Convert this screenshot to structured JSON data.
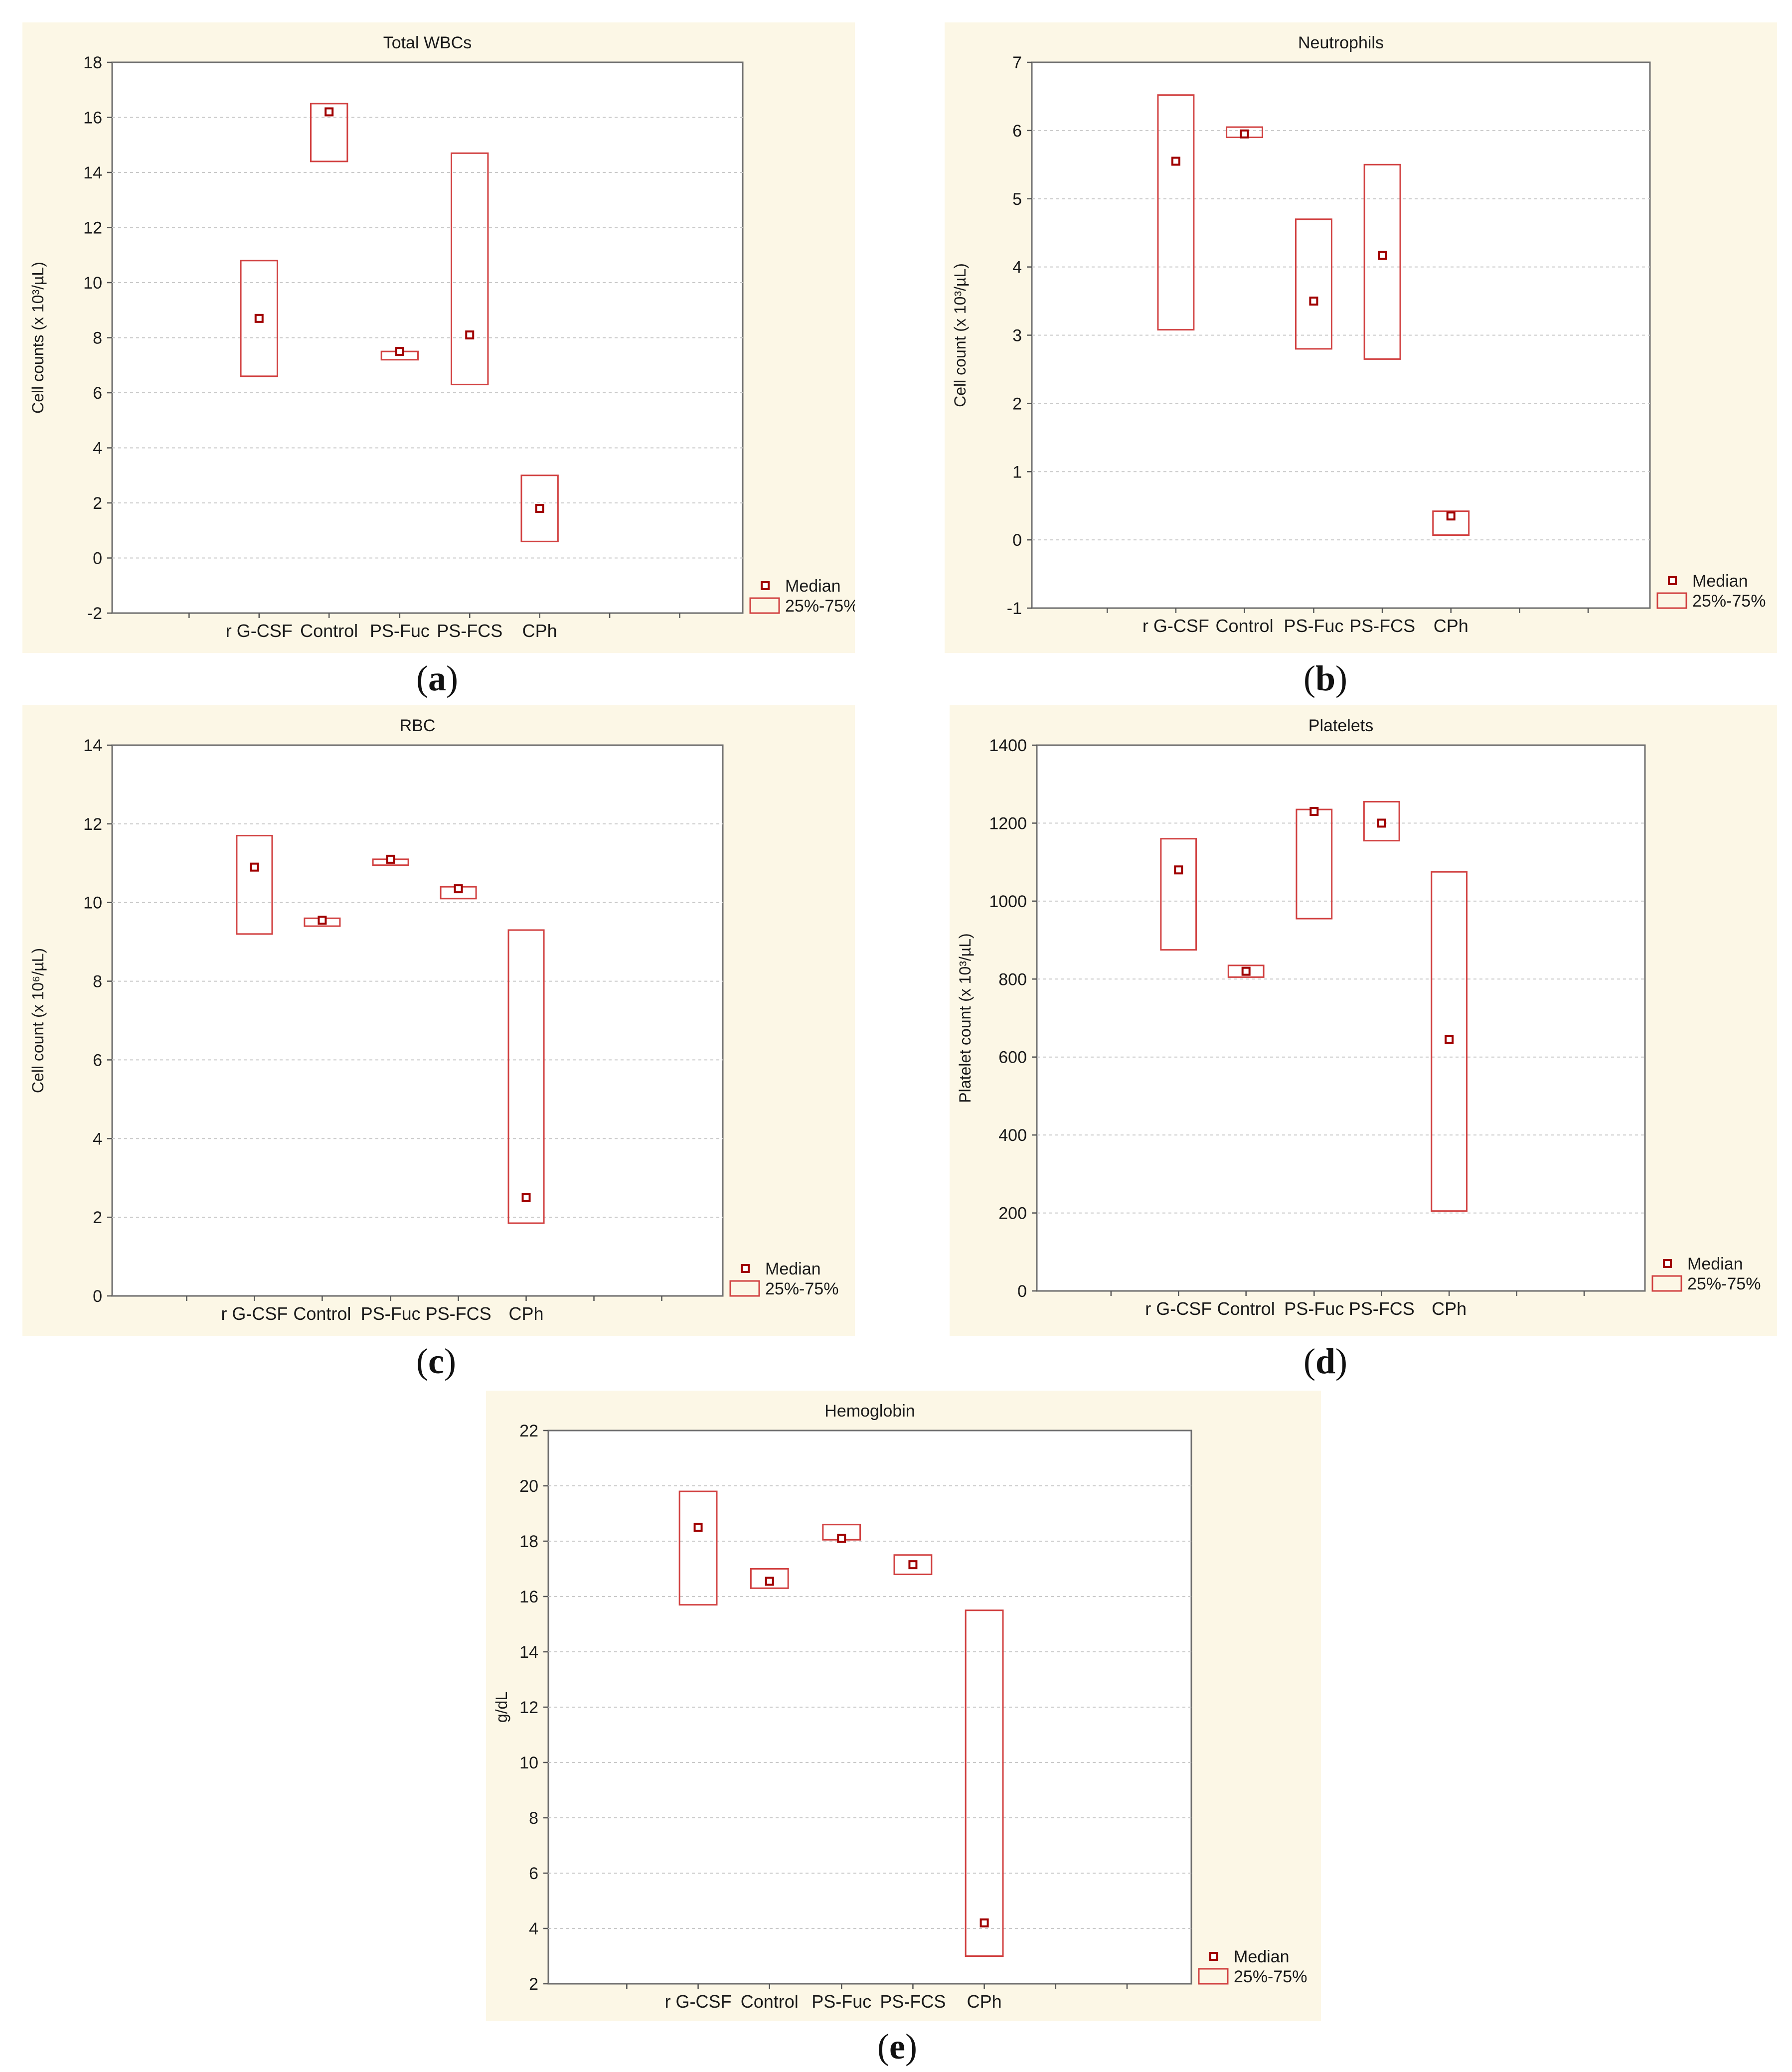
{
  "legend": {
    "median_label": "Median",
    "range_label": "25%-75%"
  },
  "colors": {
    "box": "#d14040",
    "median": "#a00000",
    "panel_background": "#fcf7e6"
  },
  "captions": {
    "a": "a",
    "b": "b",
    "c": "c",
    "d": "d",
    "e": "e"
  },
  "chart_data": [
    {
      "id": "a",
      "type": "box",
      "title": "Total WBCs",
      "ylabel": "Cell counts (x 10³/µL)",
      "ylim": [
        -2,
        18
      ],
      "yticks": [
        -2,
        0,
        2,
        4,
        6,
        8,
        10,
        12,
        14,
        16,
        18
      ],
      "categories": [
        "r G-CSF",
        "Control",
        "PS-Fuc",
        "PS-FCS",
        "CPh"
      ],
      "median": [
        8.7,
        16.2,
        7.5,
        8.1,
        1.8
      ],
      "q1": [
        6.6,
        14.4,
        7.2,
        6.3,
        0.6
      ],
      "q3": [
        10.8,
        16.5,
        7.5,
        14.7,
        3.0
      ]
    },
    {
      "id": "b",
      "type": "box",
      "title": "Neutrophils",
      "ylabel": "Cell count (x 10³/µL)",
      "ylim": [
        -1,
        7
      ],
      "yticks": [
        -1,
        0,
        1,
        2,
        3,
        4,
        5,
        6,
        7
      ],
      "categories": [
        "r G-CSF",
        "Control",
        "PS-Fuc",
        "PS-FCS",
        "CPh"
      ],
      "median": [
        5.55,
        5.95,
        3.5,
        4.17,
        0.35
      ],
      "q1": [
        3.08,
        5.9,
        2.8,
        2.65,
        0.07
      ],
      "q3": [
        6.52,
        6.05,
        4.7,
        5.5,
        0.42
      ]
    },
    {
      "id": "c",
      "type": "box",
      "title": "RBC",
      "ylabel": "Cell count (x 10⁶/µL)",
      "ylim": [
        0,
        14
      ],
      "yticks": [
        0,
        2,
        4,
        6,
        8,
        10,
        12,
        14
      ],
      "categories": [
        "r G-CSF",
        "Control",
        "PS-Fuc",
        "PS-FCS",
        "CPh"
      ],
      "median": [
        10.9,
        9.55,
        11.1,
        10.35,
        2.5
      ],
      "q1": [
        9.2,
        9.4,
        10.95,
        10.1,
        1.85
      ],
      "q3": [
        11.7,
        9.6,
        11.1,
        10.4,
        9.3
      ]
    },
    {
      "id": "d",
      "type": "box",
      "title": "Platelets",
      "ylabel": "Platelet count (x 10³/µL)",
      "ylim": [
        0,
        1400
      ],
      "yticks": [
        0,
        200,
        400,
        600,
        800,
        1000,
        1200,
        1400
      ],
      "categories": [
        "r G-CSF",
        "Control",
        "PS-Fuc",
        "PS-FCS",
        "CPh"
      ],
      "median": [
        1080,
        820,
        1230,
        1200,
        645
      ],
      "q1": [
        875,
        805,
        955,
        1155,
        205
      ],
      "q3": [
        1160,
        835,
        1235,
        1255,
        1075
      ]
    },
    {
      "id": "e",
      "type": "box",
      "title": "Hemoglobin",
      "ylabel": "g/dL",
      "ylim": [
        2,
        22
      ],
      "yticks": [
        2,
        4,
        6,
        8,
        10,
        12,
        14,
        16,
        18,
        20,
        22
      ],
      "categories": [
        "r G-CSF",
        "Control",
        "PS-Fuc",
        "PS-FCS",
        "CPh"
      ],
      "median": [
        18.5,
        16.55,
        18.1,
        17.15,
        4.2
      ],
      "q1": [
        15.7,
        16.3,
        18.05,
        16.8,
        3.0
      ],
      "q3": [
        19.8,
        17.0,
        18.6,
        17.5,
        15.5
      ]
    }
  ]
}
